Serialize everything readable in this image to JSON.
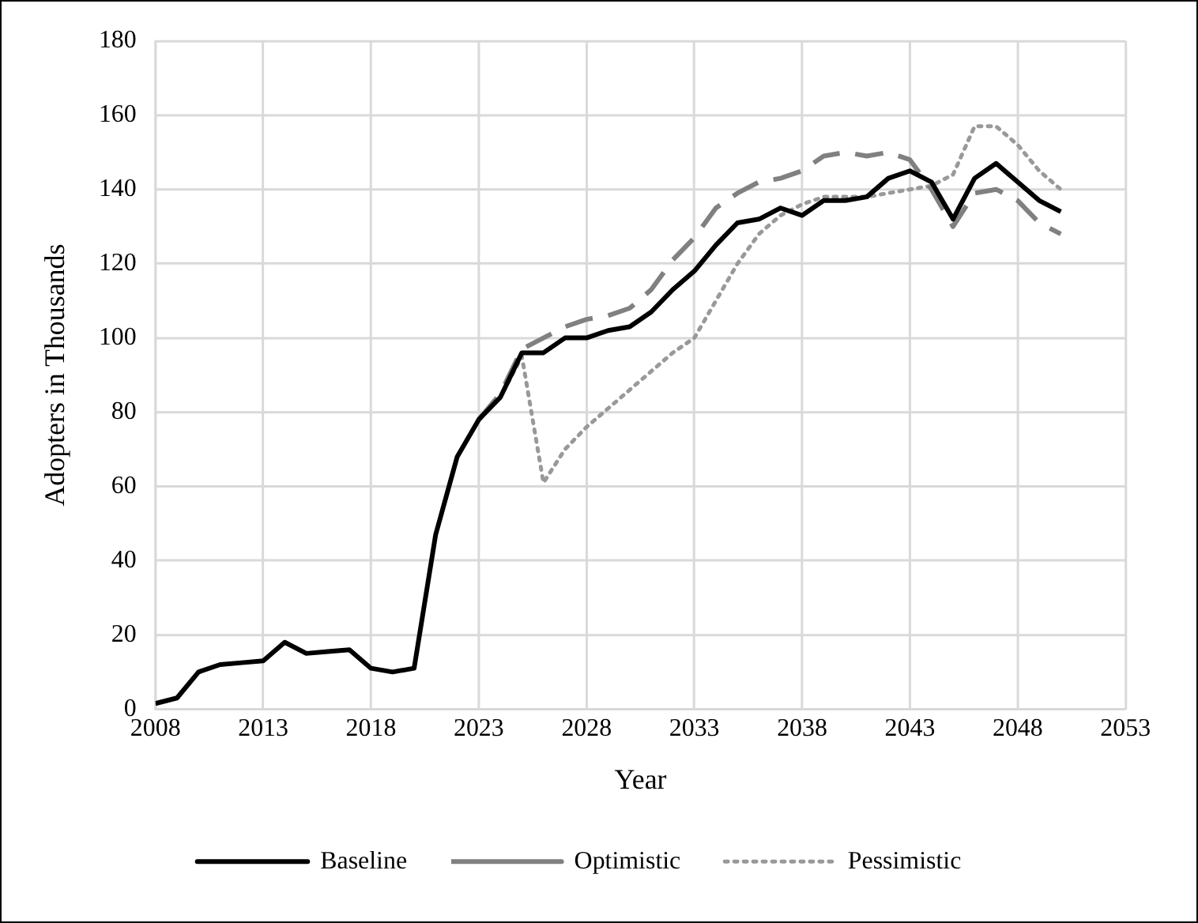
{
  "chart_data": {
    "type": "line",
    "xlabel": "Year",
    "ylabel": "Adopters in Thousands",
    "xlim": [
      2008,
      2053
    ],
    "xticks": [
      2008,
      2013,
      2018,
      2023,
      2028,
      2033,
      2038,
      2043,
      2048,
      2053
    ],
    "ylim": [
      0,
      180
    ],
    "yticks": [
      0,
      20,
      40,
      60,
      80,
      100,
      120,
      140,
      160,
      180
    ],
    "grid": true,
    "legend": "bottom",
    "marker": "none",
    "series": [
      {
        "name": "Baseline",
        "color": "#000000",
        "line_style": "solid",
        "x": [
          2008,
          2009,
          2010,
          2011,
          2012,
          2013,
          2014,
          2015,
          2016,
          2017,
          2018,
          2019,
          2020,
          2021,
          2022,
          2023,
          2024,
          2025,
          2026,
          2027,
          2028,
          2029,
          2030,
          2031,
          2032,
          2033,
          2034,
          2035,
          2036,
          2037,
          2038,
          2039,
          2040,
          2041,
          2042,
          2043,
          2044,
          2045,
          2046,
          2047,
          2048,
          2049,
          2050
        ],
        "values": [
          1.5,
          3,
          10,
          12,
          12.5,
          13,
          18,
          15,
          15.5,
          16,
          11,
          10,
          11,
          47,
          68,
          78,
          84,
          96,
          96,
          100,
          100,
          102,
          103,
          107,
          113,
          118,
          125,
          131,
          132,
          135,
          133,
          137,
          137,
          138,
          143,
          145,
          142,
          132,
          143,
          147,
          142,
          137,
          134
        ]
      },
      {
        "name": "Optimistic",
        "color": "#808080",
        "line_style": "dashed",
        "x": [
          2023,
          2024,
          2025,
          2026,
          2027,
          2028,
          2029,
          2030,
          2031,
          2032,
          2033,
          2034,
          2035,
          2036,
          2037,
          2038,
          2039,
          2040,
          2041,
          2042,
          2043,
          2044,
          2045,
          2046,
          2047,
          2048,
          2049,
          2050
        ],
        "values": [
          78,
          85,
          97,
          100,
          103,
          105,
          106,
          108,
          113,
          121,
          127,
          135,
          139,
          142,
          143,
          145,
          149,
          150,
          149,
          150,
          148,
          140,
          130,
          139,
          140,
          137,
          131,
          128
        ]
      },
      {
        "name": "Pessimistic",
        "color": "#999999",
        "line_style": "dotted",
        "x": [
          2023,
          2024,
          2025,
          2026,
          2027,
          2028,
          2029,
          2030,
          2031,
          2032,
          2033,
          2034,
          2035,
          2036,
          2037,
          2038,
          2039,
          2040,
          2041,
          2042,
          2043,
          2044,
          2045,
          2046,
          2047,
          2048,
          2049,
          2050
        ],
        "values": [
          78,
          84,
          95,
          61,
          70,
          76,
          81,
          86,
          91,
          96,
          100,
          110,
          120,
          128,
          133,
          136,
          138,
          138,
          138,
          139,
          140,
          141,
          144,
          157,
          157,
          152,
          145,
          140
        ]
      }
    ]
  }
}
